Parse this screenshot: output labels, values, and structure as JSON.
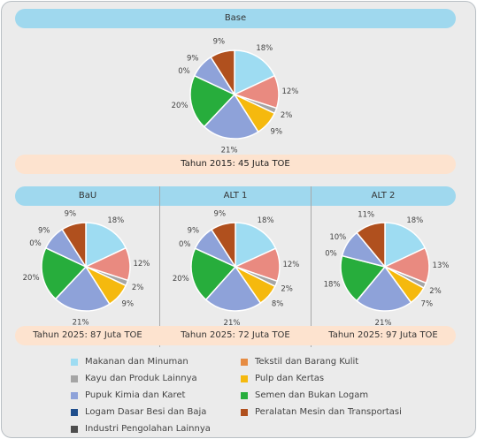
{
  "header": {
    "base_title": "Base"
  },
  "panels_header": {
    "bau": "BaU",
    "alt1": "ALT 1",
    "alt2": "ALT 2"
  },
  "totals": {
    "base": "Tahun 2015: 45 Juta TOE",
    "bau": "Tahun 2025: 87 Juta TOE",
    "alt1": "Tahun 2025: 72 Juta TOE",
    "alt2": "Tahun 2025: 97 Juta TOE"
  },
  "legend": [
    {
      "label": "Makanan dan Minuman",
      "color": "#9edcf2"
    },
    {
      "label": "Tekstil dan Barang Kulit",
      "color": "#e68c43"
    },
    {
      "label": "Kayu dan Produk Lainnya",
      "color": "#a5a5a5"
    },
    {
      "label": "Pulp dan Kertas",
      "color": "#f5b90e"
    },
    {
      "label": "Pupuk Kimia dan Karet",
      "color": "#8ea2d9"
    },
    {
      "label": "Semen dan Bukan Logam",
      "color": "#27ad3c"
    },
    {
      "label": "Logam Dasar Besi dan Baja",
      "color": "#1f4e8c"
    },
    {
      "label": "Peralatan Mesin dan Transportasi",
      "color": "#b0501e"
    },
    {
      "label": "Industri Pengolahan Lainnya",
      "color": "#4d4d4d"
    }
  ],
  "chart_data": [
    {
      "type": "pie",
      "title": "Base",
      "categories": [
        "Makanan dan Minuman",
        "Tekstil dan Barang Kulit",
        "Kayu dan Produk Lainnya",
        "Pulp dan Kertas",
        "Pupuk Kimia dan Karet",
        "Semen dan Bukan Logam",
        "Logam Dasar Besi dan Baja",
        "Peralatan Mesin dan Transportasi",
        "Industri Pengolahan Lainnya"
      ],
      "values": [
        18,
        12,
        2,
        9,
        21,
        20,
        0,
        9,
        9
      ],
      "colors": [
        "#9edcf2",
        "#e98a80",
        "#a5a5a5",
        "#f5b90e",
        "#8ea2d9",
        "#27ad3c",
        "#1f4e8c",
        "#8ea2d9",
        "#b0501e"
      ],
      "labels": [
        "18%",
        "12%",
        "2%",
        "9%",
        "21%",
        "20%",
        "0%",
        "9%",
        "9%"
      ],
      "total": "Tahun 2015: 45 Juta TOE"
    },
    {
      "type": "pie",
      "title": "BaU",
      "values": [
        18,
        12,
        2,
        9,
        21,
        20,
        0,
        9,
        9
      ],
      "labels": [
        "18%",
        "12%",
        "2%",
        "9%",
        "21%",
        "20%",
        "0%",
        "9%",
        "9%"
      ],
      "total": "Tahun 2025: 87 Juta TOE"
    },
    {
      "type": "pie",
      "title": "ALT 1",
      "values": [
        18,
        12,
        2,
        8,
        21,
        20,
        0,
        9,
        9
      ],
      "labels": [
        "18%",
        "12%",
        "2%",
        "8%",
        "21%",
        "20%",
        "0%",
        "9%",
        "9%"
      ],
      "total": "Tahun 2025: 72 Juta TOE"
    },
    {
      "type": "pie",
      "title": "ALT 2",
      "values": [
        18,
        13,
        2,
        7,
        21,
        18,
        0,
        10,
        11
      ],
      "labels": [
        "18%",
        "13%",
        "2%",
        "7%",
        "21%",
        "18%",
        "0%",
        "10%",
        "11%"
      ],
      "total": "Tahun 2025: 97 Juta TOE"
    }
  ]
}
